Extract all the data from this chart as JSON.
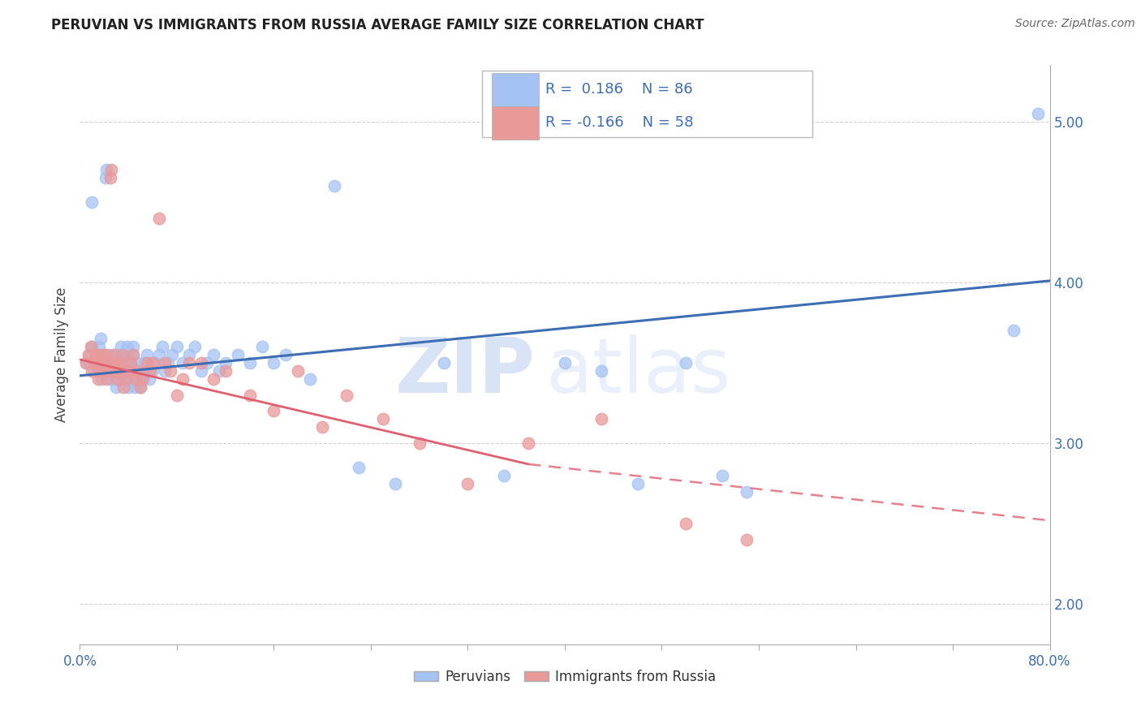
{
  "title": "PERUVIAN VS IMMIGRANTS FROM RUSSIA AVERAGE FAMILY SIZE CORRELATION CHART",
  "source": "Source: ZipAtlas.com",
  "ylabel": "Average Family Size",
  "right_yticks": [
    2.0,
    3.0,
    4.0,
    5.0
  ],
  "blue_R": 0.186,
  "blue_N": 86,
  "pink_R": -0.166,
  "pink_N": 58,
  "blue_color": "#a4c2f4",
  "pink_color": "#ea9999",
  "blue_line_color": "#3d6eb4",
  "pink_line_color": "#e06070",
  "legend_label_1": "Peruvians",
  "legend_label_2": "Immigrants from Russia",
  "watermark_zip": "ZIP",
  "watermark_atlas": "atlas",
  "xmin": 0.0,
  "xmax": 0.8,
  "ymin": 1.75,
  "ymax": 5.35,
  "blue_line_x0": 0.0,
  "blue_line_y0": 3.42,
  "blue_line_x1": 0.8,
  "blue_line_y1": 4.01,
  "pink_line_x0": 0.0,
  "pink_line_y0": 3.52,
  "pink_line_solid_x1": 0.37,
  "pink_line_y_solid1": 2.87,
  "pink_line_x1": 0.8,
  "pink_line_y1": 2.52,
  "blue_scatter_x": [
    0.005,
    0.008,
    0.01,
    0.01,
    0.012,
    0.013,
    0.015,
    0.015,
    0.016,
    0.017,
    0.018,
    0.019,
    0.02,
    0.02,
    0.021,
    0.022,
    0.023,
    0.024,
    0.025,
    0.025,
    0.026,
    0.027,
    0.028,
    0.029,
    0.03,
    0.03,
    0.031,
    0.032,
    0.033,
    0.034,
    0.035,
    0.036,
    0.037,
    0.038,
    0.039,
    0.04,
    0.04,
    0.041,
    0.042,
    0.043,
    0.044,
    0.045,
    0.046,
    0.047,
    0.048,
    0.05,
    0.051,
    0.052,
    0.053,
    0.055,
    0.057,
    0.06,
    0.062,
    0.065,
    0.068,
    0.07,
    0.073,
    0.076,
    0.08,
    0.085,
    0.09,
    0.095,
    0.1,
    0.105,
    0.11,
    0.115,
    0.12,
    0.13,
    0.14,
    0.15,
    0.16,
    0.17,
    0.19,
    0.21,
    0.23,
    0.26,
    0.3,
    0.35,
    0.4,
    0.43,
    0.46,
    0.5,
    0.53,
    0.55,
    0.77,
    0.79
  ],
  "blue_scatter_y": [
    3.5,
    3.55,
    3.6,
    4.5,
    3.45,
    3.5,
    3.5,
    3.55,
    3.6,
    3.65,
    3.4,
    3.45,
    3.5,
    3.55,
    4.65,
    4.7,
    3.5,
    3.55,
    3.45,
    3.5,
    3.4,
    3.45,
    3.5,
    3.55,
    3.35,
    3.4,
    3.45,
    3.5,
    3.55,
    3.6,
    3.4,
    3.45,
    3.5,
    3.55,
    3.6,
    3.35,
    3.4,
    3.45,
    3.5,
    3.55,
    3.6,
    3.35,
    3.4,
    3.45,
    3.5,
    3.35,
    3.4,
    3.45,
    3.5,
    3.55,
    3.4,
    3.45,
    3.5,
    3.55,
    3.6,
    3.45,
    3.5,
    3.55,
    3.6,
    3.5,
    3.55,
    3.6,
    3.45,
    3.5,
    3.55,
    3.45,
    3.5,
    3.55,
    3.5,
    3.6,
    3.5,
    3.55,
    3.4,
    4.6,
    2.85,
    2.75,
    3.5,
    2.8,
    3.5,
    3.45,
    2.75,
    3.5,
    2.8,
    2.7,
    3.7,
    5.05
  ],
  "pink_scatter_x": [
    0.005,
    0.007,
    0.009,
    0.01,
    0.012,
    0.013,
    0.015,
    0.016,
    0.017,
    0.018,
    0.019,
    0.02,
    0.021,
    0.022,
    0.023,
    0.025,
    0.026,
    0.027,
    0.028,
    0.029,
    0.03,
    0.031,
    0.032,
    0.034,
    0.035,
    0.036,
    0.038,
    0.04,
    0.042,
    0.044,
    0.046,
    0.048,
    0.05,
    0.052,
    0.055,
    0.058,
    0.06,
    0.065,
    0.07,
    0.075,
    0.08,
    0.085,
    0.09,
    0.1,
    0.11,
    0.12,
    0.14,
    0.16,
    0.18,
    0.2,
    0.22,
    0.25,
    0.28,
    0.32,
    0.37,
    0.43,
    0.5,
    0.55
  ],
  "pink_scatter_y": [
    3.5,
    3.55,
    3.6,
    3.45,
    3.5,
    3.55,
    3.4,
    3.45,
    3.5,
    3.55,
    3.45,
    3.5,
    3.55,
    3.4,
    3.45,
    4.65,
    4.7,
    3.5,
    3.55,
    3.45,
    3.5,
    3.4,
    3.45,
    3.5,
    3.55,
    3.35,
    3.4,
    3.45,
    3.5,
    3.55,
    3.4,
    3.45,
    3.35,
    3.4,
    3.5,
    3.45,
    3.5,
    4.4,
    3.5,
    3.45,
    3.3,
    3.4,
    3.5,
    3.5,
    3.4,
    3.45,
    3.3,
    3.2,
    3.45,
    3.1,
    3.3,
    3.15,
    3.0,
    2.75,
    3.0,
    3.15,
    2.5,
    2.4
  ]
}
